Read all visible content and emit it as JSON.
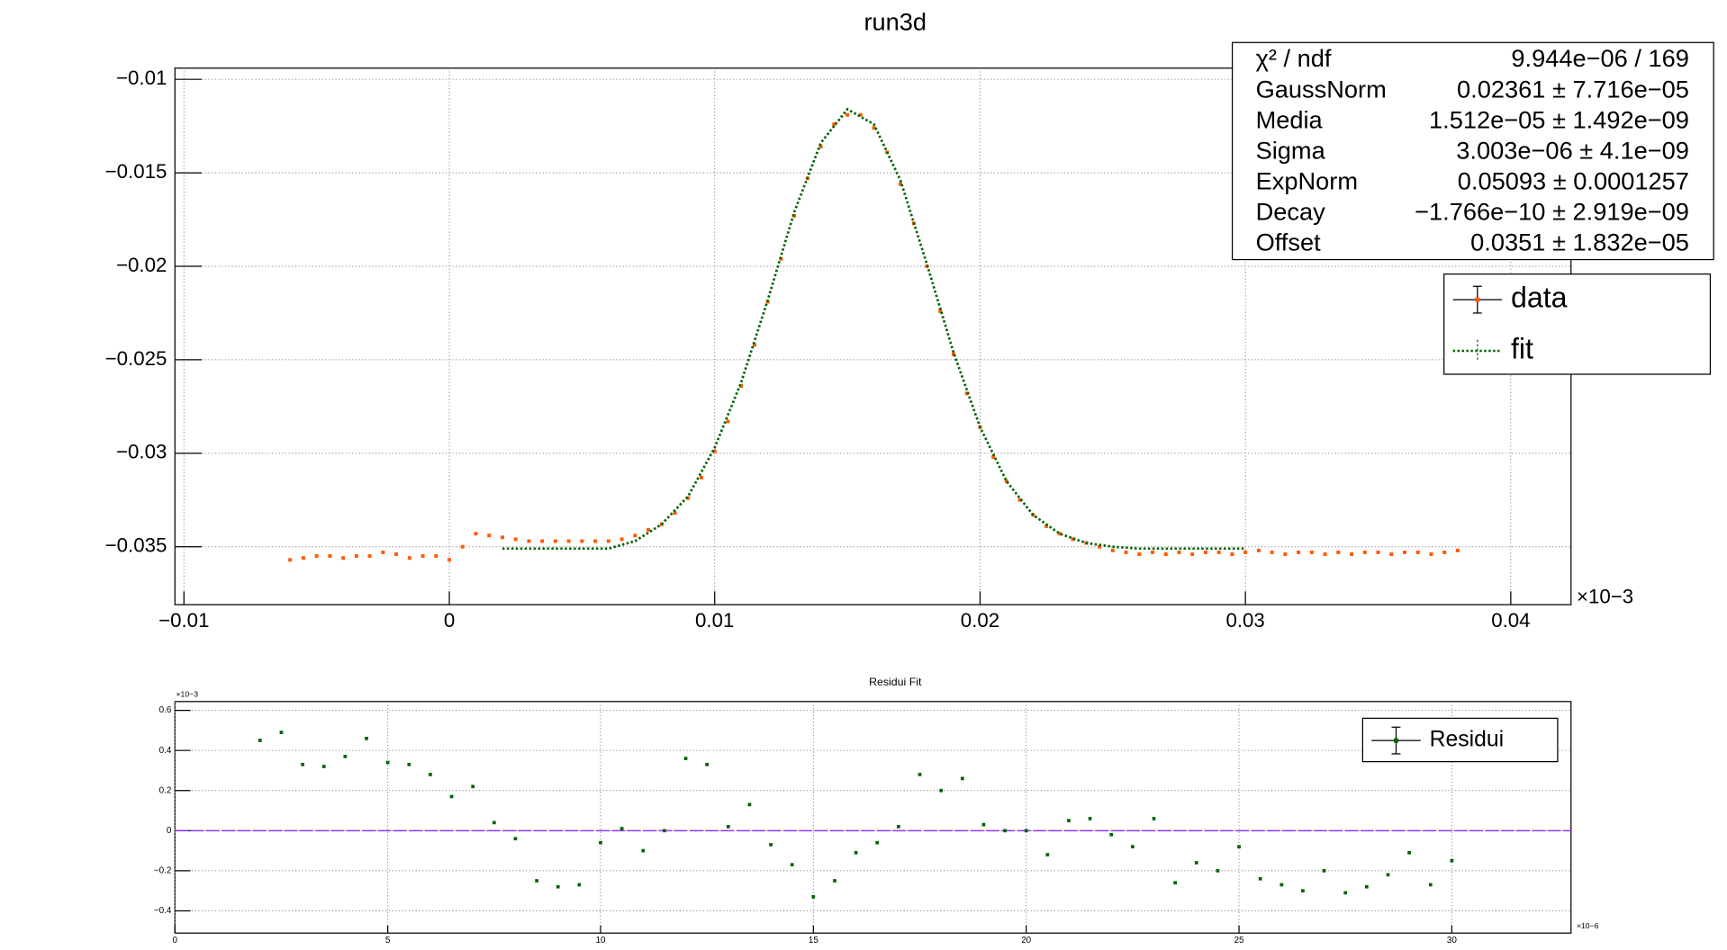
{
  "chart_data": [
    {
      "type": "scatter",
      "title": "run3d",
      "x_exponent": "×10−3",
      "xlim": [
        -0.01034,
        0.04227
      ],
      "ylim": [
        -0.0381,
        -0.0094
      ],
      "xticks": [
        {
          "value": -0.01,
          "label": "−0.01"
        },
        0,
        0.01,
        0.02,
        0.03,
        0.04
      ],
      "yticks": [
        {
          "value": -0.01,
          "label": "−0.01"
        },
        {
          "value": -0.015,
          "label": "−0.015"
        },
        {
          "value": -0.02,
          "label": "−0.02"
        },
        {
          "value": -0.025,
          "label": "−0.025"
        },
        {
          "value": -0.03,
          "label": "−0.03"
        },
        {
          "value": -0.035,
          "label": "−0.035"
        }
      ],
      "grid": true,
      "series": [
        {
          "name": "data",
          "color": "#ff5a00",
          "style": "markers",
          "x": [
            -0.006,
            -0.0055,
            -0.005,
            -0.0045,
            -0.004,
            -0.0035,
            -0.003,
            -0.0025,
            -0.002,
            -0.0015,
            -0.001,
            -0.0005,
            0,
            0.0005,
            0.001,
            0.0015,
            0.002,
            0.0025,
            0.003,
            0.0035,
            0.004,
            0.0045,
            0.005,
            0.0055,
            0.006,
            0.0065,
            0.007,
            0.0075,
            0.008,
            0.0085,
            0.009,
            0.0095,
            0.01,
            0.0105,
            0.011,
            0.0115,
            0.012,
            0.0125,
            0.013,
            0.0135,
            0.014,
            0.0145,
            0.015,
            0.0155,
            0.016,
            0.0165,
            0.017,
            0.0175,
            0.018,
            0.0185,
            0.019,
            0.0195,
            0.02,
            0.0205,
            0.021,
            0.0215,
            0.022,
            0.0225,
            0.023,
            0.0235,
            0.024,
            0.0245,
            0.025,
            0.0255,
            0.026,
            0.0265,
            0.027,
            0.0275,
            0.028,
            0.0285,
            0.029,
            0.0295,
            0.03,
            0.0305,
            0.031,
            0.0315,
            0.032,
            0.0325,
            0.033,
            0.0335,
            0.034,
            0.0345,
            0.035,
            0.0355,
            0.036,
            0.0365,
            0.037,
            0.0375,
            0.038
          ],
          "values": [
            -0.0357,
            -0.0356,
            -0.0355,
            -0.0355,
            -0.0356,
            -0.0355,
            -0.0355,
            -0.0353,
            -0.0354,
            -0.0356,
            -0.0355,
            -0.0355,
            -0.0357,
            -0.035,
            -0.0343,
            -0.0344,
            -0.0345,
            -0.0346,
            -0.0347,
            -0.0347,
            -0.0347,
            -0.0347,
            -0.0347,
            -0.0347,
            -0.0347,
            -0.0346,
            -0.0344,
            -0.0341,
            -0.0338,
            -0.0332,
            -0.0324,
            -0.0313,
            -0.0299,
            -0.0283,
            -0.0264,
            -0.0242,
            -0.0219,
            -0.0196,
            -0.0173,
            -0.0153,
            -0.0136,
            -0.0124,
            -0.0119,
            -0.0119,
            -0.0126,
            -0.0139,
            -0.0156,
            -0.0177,
            -0.02,
            -0.0224,
            -0.0247,
            -0.0268,
            -0.0286,
            -0.0302,
            -0.0315,
            -0.0325,
            -0.0333,
            -0.0339,
            -0.0343,
            -0.0346,
            -0.0348,
            -0.035,
            -0.0352,
            -0.0353,
            -0.0354,
            -0.0353,
            -0.0354,
            -0.0353,
            -0.0354,
            -0.0353,
            -0.0353,
            -0.0354,
            -0.0353,
            -0.0352,
            -0.0353,
            -0.0354,
            -0.0353,
            -0.0353,
            -0.0354,
            -0.0353,
            -0.0354,
            -0.0353,
            -0.0353,
            -0.0354,
            -0.0353,
            -0.0353,
            -0.0354,
            -0.0353,
            -0.0352
          ]
        },
        {
          "name": "fit",
          "color": "#006400",
          "style": "dotted",
          "x": [
            0.002,
            0.003,
            0.004,
            0.005,
            0.006,
            0.007,
            0.008,
            0.009,
            0.01,
            0.011,
            0.012,
            0.013,
            0.014,
            0.015,
            0.016,
            0.017,
            0.018,
            0.019,
            0.02,
            0.021,
            0.022,
            0.023,
            0.024,
            0.025,
            0.026,
            0.027,
            0.028,
            0.029,
            0.03
          ],
          "values": [
            -0.0351,
            -0.0351,
            -0.0351,
            -0.0351,
            -0.0351,
            -0.0347,
            -0.0338,
            -0.0323,
            -0.0297,
            -0.0262,
            -0.0218,
            -0.0171,
            -0.0134,
            -0.0116,
            -0.0124,
            -0.0154,
            -0.0199,
            -0.0246,
            -0.0286,
            -0.0315,
            -0.0333,
            -0.0343,
            -0.0348,
            -0.035,
            -0.0351,
            -0.0351,
            -0.0351,
            -0.0351,
            -0.0351
          ]
        }
      ],
      "stats": [
        {
          "label": "χ² / ndf",
          "value": "9.944e−06 / 169"
        },
        {
          "label": "GaussNorm",
          "value": "0.02361 ± 7.716e−05"
        },
        {
          "label": "Media",
          "value": "1.512e−05 ± 1.492e−09"
        },
        {
          "label": "Sigma",
          "value": "3.003e−06 ± 4.1e−09"
        },
        {
          "label": "ExpNorm",
          "value": "0.05093 ± 0.0001257"
        },
        {
          "label": "Decay",
          "value": "−1.766e−10 ± 2.919e−09"
        },
        {
          "label": "Offset",
          "value": "0.0351 ± 1.832e−05"
        }
      ]
    },
    {
      "type": "scatter",
      "title": "Residui Fit",
      "x_exponent": "×10−6",
      "y_exponent": "×10−3",
      "xlim": [
        0,
        32.8
      ],
      "ylim": [
        -0.511,
        0.644
      ],
      "xticks": [
        0,
        5,
        10,
        15,
        20,
        25,
        30
      ],
      "yticks": [
        {
          "value": -0.4,
          "label": "−0.4"
        },
        {
          "value": -0.2,
          "label": "−0.2"
        },
        0,
        0.2,
        0.4,
        0.6
      ],
      "grid": true,
      "hline": {
        "value": 0,
        "color": "#9933ff"
      },
      "series": [
        {
          "name": "Residui",
          "color": "#006400",
          "style": "markers",
          "x": [
            2,
            2.5,
            3,
            3.5,
            4,
            4.5,
            5,
            5.5,
            6,
            6.5,
            7,
            7.5,
            8,
            8.5,
            9,
            9.5,
            10,
            10.5,
            11,
            11.5,
            12,
            12.5,
            13,
            13.5,
            14,
            14.5,
            15,
            15.5,
            16,
            16.5,
            17,
            17.5,
            18,
            18.5,
            19,
            19.5,
            20,
            20.5,
            21,
            21.5,
            22,
            22.5,
            23,
            23.5,
            24,
            24.5,
            25,
            25.5,
            26,
            26.5,
            27,
            27.5,
            28,
            28.5,
            29,
            29.5,
            30
          ],
          "values": [
            0.45,
            0.49,
            0.33,
            0.32,
            0.37,
            0.46,
            0.34,
            0.33,
            0.28,
            0.17,
            0.22,
            0.04,
            -0.04,
            -0.25,
            -0.28,
            -0.27,
            -0.06,
            0.01,
            -0.1,
            0.0,
            0.36,
            0.33,
            0.02,
            0.13,
            -0.07,
            -0.17,
            -0.33,
            -0.25,
            -0.11,
            -0.06,
            0.02,
            0.28,
            0.2,
            0.26,
            0.03,
            0.0,
            0.0,
            -0.12,
            0.05,
            0.06,
            -0.02,
            -0.08,
            0.06,
            -0.26,
            -0.16,
            -0.2,
            -0.08,
            -0.24,
            -0.27,
            -0.3,
            -0.2,
            -0.31,
            -0.28,
            -0.22,
            -0.11,
            -0.27,
            -0.15
          ]
        }
      ]
    }
  ]
}
